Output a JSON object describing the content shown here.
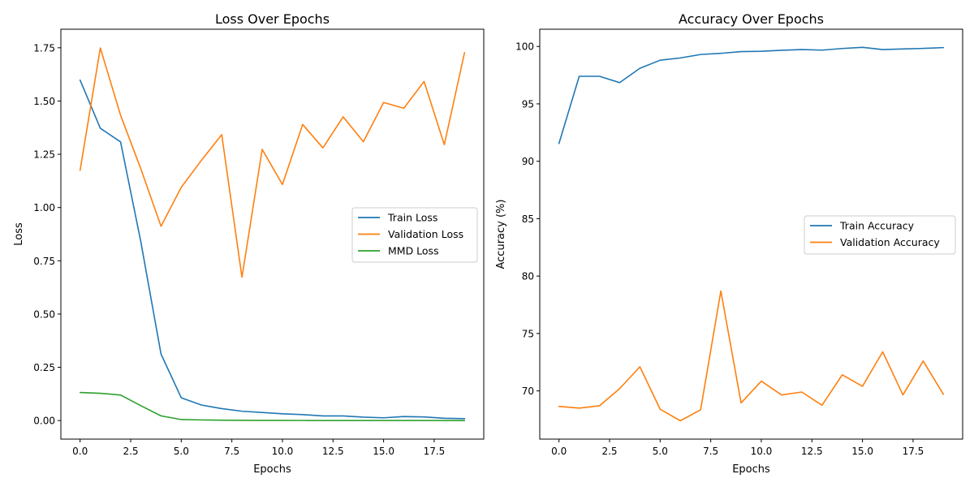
{
  "chart_data": [
    {
      "type": "line",
      "title": "Loss Over Epochs",
      "xlabel": "Epochs",
      "ylabel": "Loss",
      "xlim": [
        -0.95,
        19.95
      ],
      "ylim": [
        -0.087,
        1.837
      ],
      "xticks": [
        0,
        2.5,
        5,
        7.5,
        10,
        12.5,
        15,
        17.5
      ],
      "xtick_labels": [
        "0.0",
        "2.5",
        "5.0",
        "7.5",
        "10.0",
        "12.5",
        "15.0",
        "17.5"
      ],
      "yticks": [
        0,
        0.25,
        0.5,
        0.75,
        1.0,
        1.25,
        1.5,
        1.75
      ],
      "ytick_labels": [
        "0.00",
        "0.25",
        "0.50",
        "0.75",
        "1.00",
        "1.25",
        "1.50",
        "1.75"
      ],
      "legend_position": "center-right",
      "grid": false,
      "x": [
        0,
        1,
        2,
        3,
        4,
        5,
        6,
        7,
        8,
        9,
        10,
        11,
        12,
        13,
        14,
        15,
        16,
        17,
        18,
        19
      ],
      "series": [
        {
          "name": "Train Loss",
          "color": "#1f77b4",
          "values": [
            1.598,
            1.372,
            1.308,
            0.84,
            0.312,
            0.107,
            0.073,
            0.056,
            0.044,
            0.038,
            0.032,
            0.028,
            0.022,
            0.022,
            0.016,
            0.013,
            0.019,
            0.017,
            0.011,
            0.009
          ]
        },
        {
          "name": "Validation Loss",
          "color": "#ff7f0e",
          "values": [
            1.175,
            1.749,
            1.433,
            1.182,
            0.912,
            1.095,
            1.222,
            1.342,
            0.673,
            1.273,
            1.108,
            1.39,
            1.28,
            1.426,
            1.309,
            1.493,
            1.466,
            1.592,
            1.295,
            1.727
          ]
        },
        {
          "name": "MMD Loss",
          "color": "#2ca02c",
          "values": [
            0.132,
            0.128,
            0.12,
            0.07,
            0.022,
            0.005,
            0.003,
            0.002,
            0.0015,
            0.001,
            0.0008,
            0.0006,
            0.0005,
            0.0004,
            0.0003,
            0.0003,
            0.0002,
            0.0002,
            0.0002,
            0.0001
          ]
        }
      ]
    },
    {
      "type": "line",
      "title": "Accuracy Over Epochs",
      "xlabel": "Epochs",
      "ylabel": "Accuracy (%)",
      "xlim": [
        -0.95,
        19.95
      ],
      "ylim": [
        65.8,
        101.5
      ],
      "xticks": [
        0,
        2.5,
        5,
        7.5,
        10,
        12.5,
        15,
        17.5
      ],
      "xtick_labels": [
        "0.0",
        "2.5",
        "5.0",
        "7.5",
        "10.0",
        "12.5",
        "15.0",
        "17.5"
      ],
      "yticks": [
        70,
        75,
        80,
        85,
        90,
        95,
        100
      ],
      "ytick_labels": [
        "70",
        "75",
        "80",
        "85",
        "90",
        "95",
        "100"
      ],
      "legend_position": "center-right",
      "grid": false,
      "x": [
        0,
        1,
        2,
        3,
        4,
        5,
        6,
        7,
        8,
        9,
        10,
        11,
        12,
        13,
        14,
        15,
        16,
        17,
        18,
        19
      ],
      "series": [
        {
          "name": "Train Accuracy",
          "color": "#1f77b4",
          "values": [
            91.55,
            97.4,
            97.4,
            96.85,
            98.1,
            98.8,
            99.0,
            99.3,
            99.4,
            99.55,
            99.58,
            99.67,
            99.73,
            99.68,
            99.82,
            99.92,
            99.73,
            99.78,
            99.83,
            99.9
          ]
        },
        {
          "name": "Validation Accuracy",
          "color": "#ff7f0e",
          "values": [
            68.65,
            68.5,
            68.7,
            70.2,
            72.1,
            68.4,
            67.4,
            68.35,
            78.7,
            68.95,
            70.85,
            69.65,
            69.9,
            68.75,
            71.4,
            70.4,
            73.4,
            69.65,
            72.6,
            69.7
          ]
        }
      ]
    }
  ]
}
